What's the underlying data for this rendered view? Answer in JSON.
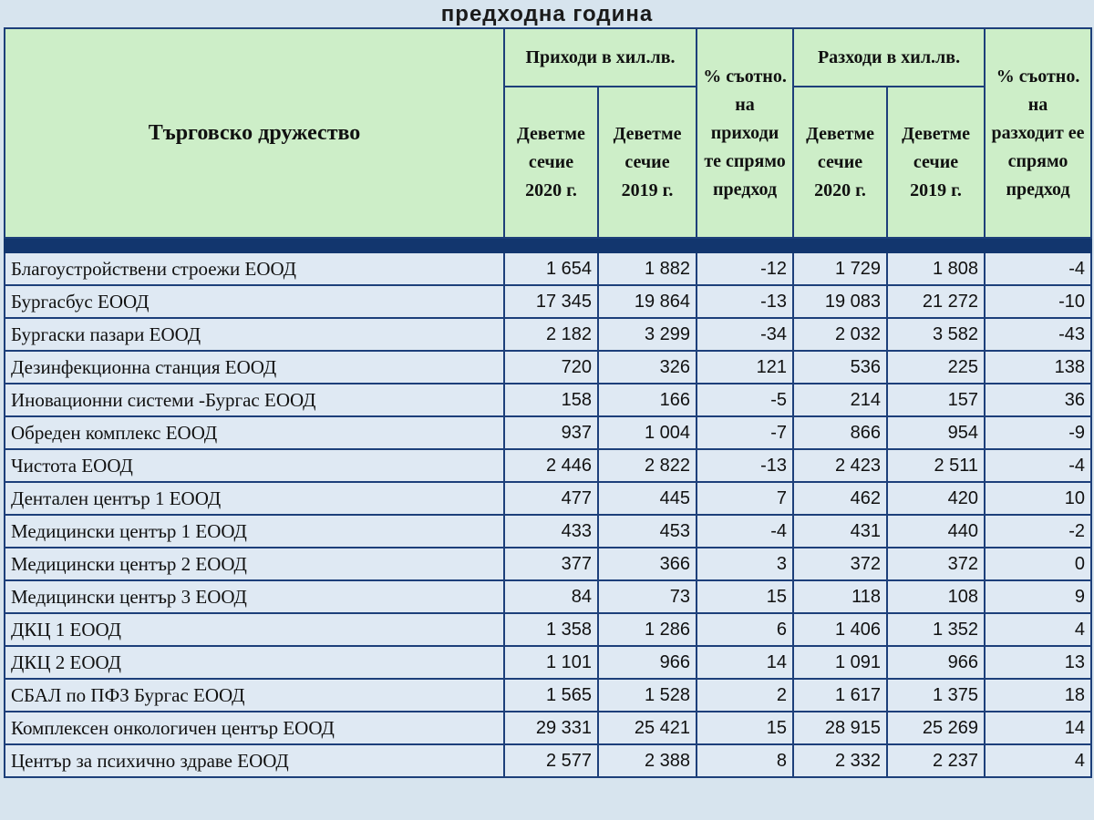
{
  "title": "предходна година",
  "headers": {
    "company": "Търговско дружество",
    "income_group": "Приходи в хил.лв.",
    "expense_group": "Разходи в хил.лв.",
    "income_2020": "Деветме сечие 2020 г.",
    "income_2019": "Деветме сечие 2019 г.",
    "income_pct": "% съотно. на приходи те спрямо предход",
    "expense_2020": "Деветме сечие 2020 г.",
    "expense_2019": "Деветме сечие 2019 г.",
    "expense_pct": "% съотно. на разходит ее спрямо предход"
  },
  "rows": [
    [
      "Благоустройствени строежи ЕООД",
      "1 654",
      "1 882",
      "-12",
      "1 729",
      "1 808",
      "-4"
    ],
    [
      "Бургасбус ЕООД",
      "17 345",
      "19 864",
      "-13",
      "19 083",
      "21 272",
      "-10"
    ],
    [
      "Бургаски пазари ЕООД",
      "2 182",
      "3 299",
      "-34",
      "2 032",
      "3 582",
      "-43"
    ],
    [
      "Дезинфекционна станция ЕООД",
      "720",
      "326",
      "121",
      "536",
      "225",
      "138"
    ],
    [
      "Иновационни системи -Бургас ЕООД",
      "158",
      "166",
      "-5",
      "214",
      "157",
      "36"
    ],
    [
      "Обреден комплекс ЕООД",
      "937",
      "1 004",
      "-7",
      "866",
      "954",
      "-9"
    ],
    [
      "Чистота ЕООД",
      "2 446",
      "2 822",
      "-13",
      "2 423",
      "2 511",
      "-4"
    ],
    [
      "Дентален център 1 ЕООД",
      "477",
      "445",
      "7",
      "462",
      "420",
      "10"
    ],
    [
      "Медицински център 1 ЕООД",
      "433",
      "453",
      "-4",
      "431",
      "440",
      "-2"
    ],
    [
      "Медицински център 2 ЕООД",
      "377",
      "366",
      "3",
      "372",
      "372",
      "0"
    ],
    [
      "Медицински център 3 ЕООД",
      "84",
      "73",
      "15",
      "118",
      "108",
      "9"
    ],
    [
      "ДКЦ 1 ЕООД",
      "1 358",
      "1 286",
      "6",
      "1 406",
      "1 352",
      "4"
    ],
    [
      "ДКЦ 2 ЕООД",
      "1 101",
      "966",
      "14",
      "1 091",
      "966",
      "13"
    ],
    [
      "СБАЛ по ПФЗ  Бургас ЕООД",
      "1 565",
      "1 528",
      "2",
      "1 617",
      "1 375",
      "18"
    ],
    [
      "Комплексен онкологичен център ЕООД",
      "29 331",
      "25 421",
      "15",
      "28 915",
      "25 269",
      "14"
    ],
    [
      "Център за психично здраве ЕООД",
      "2 577",
      "2 388",
      "8",
      "2 332",
      "2 237",
      "4"
    ]
  ]
}
